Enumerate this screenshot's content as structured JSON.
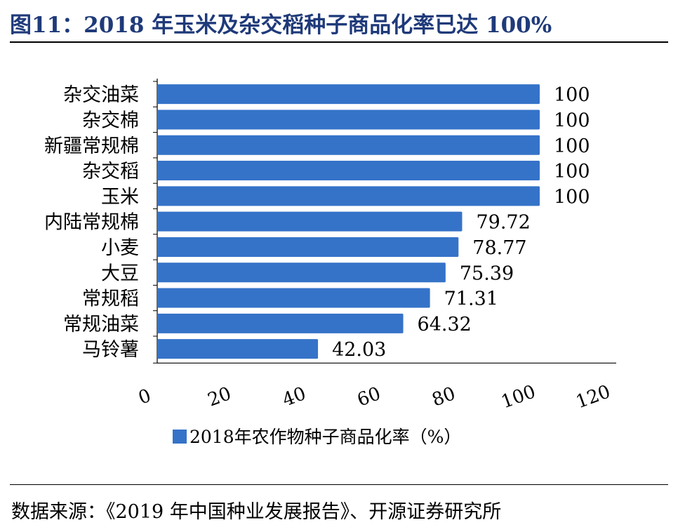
{
  "title": "图11：2018 年玉米及杂交稻种子商品化率已达 100%",
  "source": "数据来源：《2019 年中国种业发展报告》、开源证券研究所",
  "colors": {
    "bar": "#3573c8",
    "title": "#1f3a7a"
  },
  "chart_data": {
    "type": "bar",
    "orientation": "horizontal",
    "categories": [
      "杂交油菜",
      "杂交棉",
      "新疆常规棉",
      "杂交稻",
      "玉米",
      "内陆常规棉",
      "小麦",
      "大豆",
      "常规稻",
      "常规油菜",
      "马铃薯"
    ],
    "series": [
      {
        "name": "2018年农作物种子商品化率（%）",
        "values": [
          100,
          100,
          100,
          100,
          100,
          79.72,
          78.77,
          75.39,
          71.31,
          64.32,
          42.03
        ],
        "labels": [
          "100",
          "100",
          "100",
          "100",
          "100",
          "79.72",
          "78.77",
          "75.39",
          "71.31",
          "64.32",
          "42.03"
        ]
      }
    ],
    "xlim": [
      0,
      120
    ],
    "xticks": [
      "0",
      "20",
      "40",
      "60",
      "80",
      "100",
      "120"
    ],
    "grid": false,
    "legend": "bottom"
  }
}
